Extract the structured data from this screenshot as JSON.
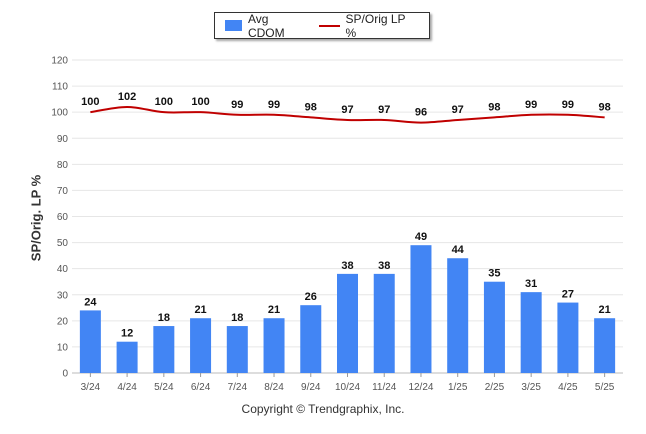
{
  "chart_data": {
    "type": "bar",
    "categories": [
      "3/24",
      "4/24",
      "5/24",
      "6/24",
      "7/24",
      "8/24",
      "9/24",
      "10/24",
      "11/24",
      "12/24",
      "1/25",
      "2/25",
      "3/25",
      "4/25",
      "5/25"
    ],
    "series": [
      {
        "name": "Avg CDOM",
        "type": "bar",
        "color": "#4285f4",
        "values": [
          24,
          12,
          18,
          21,
          18,
          21,
          26,
          38,
          38,
          49,
          44,
          35,
          31,
          27,
          21
        ]
      },
      {
        "name": "SP/Orig LP %",
        "type": "line",
        "color": "#c00000",
        "values": [
          100,
          102,
          100,
          100,
          99,
          99,
          98,
          97,
          97,
          96,
          97,
          98,
          99,
          99,
          98
        ]
      }
    ],
    "ylabel": "SP/Orig. LP %",
    "ylim": [
      0,
      120
    ],
    "yticks": [
      0,
      10,
      20,
      30,
      40,
      50,
      60,
      70,
      80,
      90,
      100,
      110,
      120
    ],
    "grid": true,
    "legend": "top-center"
  },
  "legend": {
    "bar_label": "Avg CDOM",
    "line_label": "SP/Orig LP %"
  },
  "footer": {
    "copyright": "Copyright © Trendgraphix, Inc."
  }
}
